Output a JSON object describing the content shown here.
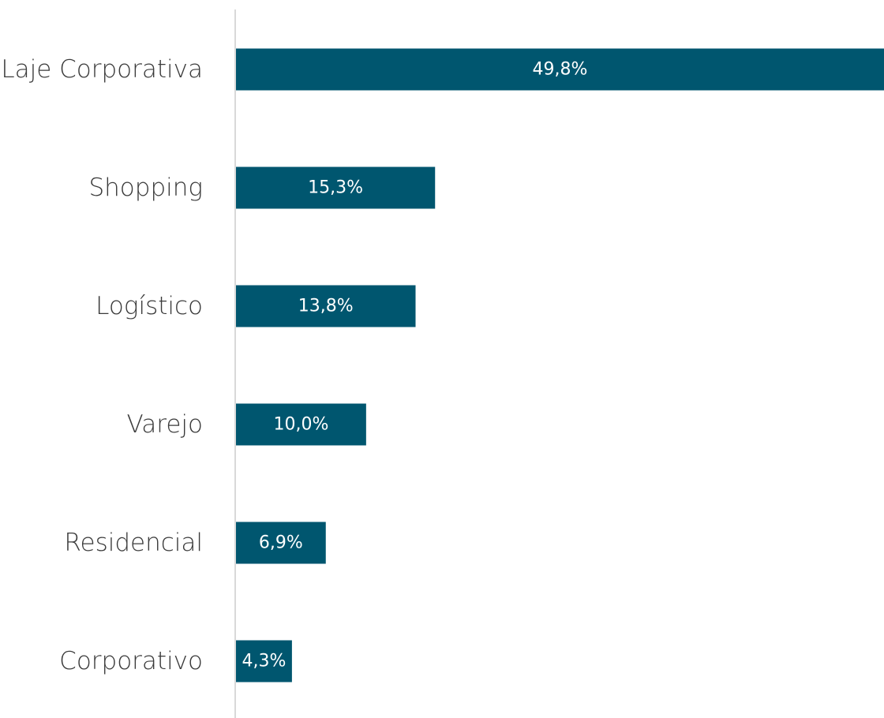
{
  "chart_data": {
    "type": "bar",
    "orientation": "horizontal",
    "categories": [
      "Laje Corporativa",
      "Shopping",
      "Logístico",
      "Varejo",
      "Residencial",
      "Corporativo"
    ],
    "values": [
      49.8,
      15.3,
      13.8,
      10.0,
      6.9,
      4.3
    ],
    "value_labels": [
      "49,8%",
      "15,3%",
      "13,8%",
      "10,0%",
      "6,9%",
      "4,3%"
    ],
    "color": "#00566f"
  }
}
